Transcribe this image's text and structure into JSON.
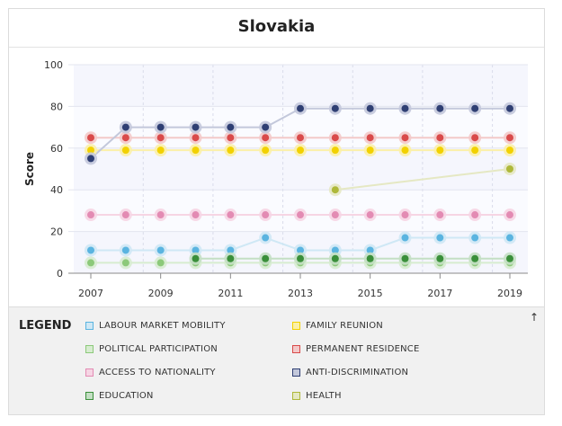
{
  "chart_data": {
    "type": "line",
    "title": "Slovakia",
    "ylabel": "Score",
    "xlabel": "",
    "ylim": [
      0,
      100
    ],
    "yticks": [
      0,
      20,
      40,
      60,
      80,
      100
    ],
    "xlim": [
      2007,
      2019
    ],
    "xticks": [
      2007,
      2009,
      2011,
      2013,
      2015,
      2017,
      2019
    ],
    "grid": true,
    "legend_title": "LEGEND",
    "legend_placement": "bottom",
    "series": [
      {
        "name": "LABOUR MARKET MOBILITY",
        "color": "#5ab4e0",
        "fill": "#cfe8f5",
        "x": [
          2007,
          2008,
          2009,
          2010,
          2011,
          2012,
          2013,
          2014,
          2015,
          2016,
          2017,
          2018,
          2019
        ],
        "values": [
          11,
          11,
          11,
          11,
          11,
          17,
          11,
          11,
          11,
          17,
          17,
          17,
          17
        ]
      },
      {
        "name": "FAMILY REUNION",
        "color": "#f2d100",
        "fill": "#fbf0a8",
        "x": [
          2007,
          2008,
          2009,
          2010,
          2011,
          2012,
          2013,
          2014,
          2015,
          2016,
          2017,
          2018,
          2019
        ],
        "values": [
          59,
          59,
          59,
          59,
          59,
          59,
          59,
          59,
          59,
          59,
          59,
          59,
          59
        ]
      },
      {
        "name": "POLITICAL PARTICIPATION",
        "color": "#8cc97a",
        "fill": "#d7ecd0",
        "x": [
          2007,
          2008,
          2009,
          2010,
          2011,
          2012,
          2013,
          2014,
          2015,
          2016,
          2017,
          2018,
          2019
        ],
        "values": [
          5,
          5,
          5,
          5,
          5,
          5,
          5,
          5,
          5,
          5,
          5,
          5,
          5
        ]
      },
      {
        "name": "PERMANENT RESIDENCE",
        "color": "#d94a4a",
        "fill": "#f3c9c9",
        "x": [
          2007,
          2008,
          2009,
          2010,
          2011,
          2012,
          2013,
          2014,
          2015,
          2016,
          2017,
          2018,
          2019
        ],
        "values": [
          65,
          65,
          65,
          65,
          65,
          65,
          65,
          65,
          65,
          65,
          65,
          65,
          65
        ]
      },
      {
        "name": "ACCESS TO NATIONALITY",
        "color": "#e38bb3",
        "fill": "#f6d5e4",
        "x": [
          2007,
          2008,
          2009,
          2010,
          2011,
          2012,
          2013,
          2014,
          2015,
          2016,
          2017,
          2018,
          2019
        ],
        "values": [
          28,
          28,
          28,
          28,
          28,
          28,
          28,
          28,
          28,
          28,
          28,
          28,
          28
        ]
      },
      {
        "name": "ANTI-DISCRIMINATION",
        "color": "#2f3f73",
        "fill": "#c3c8db",
        "x": [
          2007,
          2008,
          2009,
          2010,
          2011,
          2012,
          2013,
          2014,
          2015,
          2016,
          2017,
          2018,
          2019
        ],
        "values": [
          55,
          70,
          70,
          70,
          70,
          70,
          79,
          79,
          79,
          79,
          79,
          79,
          79
        ]
      },
      {
        "name": "EDUCATION",
        "color": "#3a8f3a",
        "fill": "#c4dfc4",
        "x": [
          2010,
          2011,
          2012,
          2013,
          2014,
          2015,
          2016,
          2017,
          2018,
          2019
        ],
        "values": [
          7,
          7,
          7,
          7,
          7,
          7,
          7,
          7,
          7,
          7
        ]
      },
      {
        "name": "HEALTH",
        "color": "#aeb83a",
        "fill": "#e5e8c3",
        "x": [
          2014,
          2019
        ],
        "values": [
          40,
          50
        ]
      }
    ]
  },
  "legend": {
    "collapse_icon": "arrow-up-icon",
    "collapse_glyph": "↑"
  }
}
